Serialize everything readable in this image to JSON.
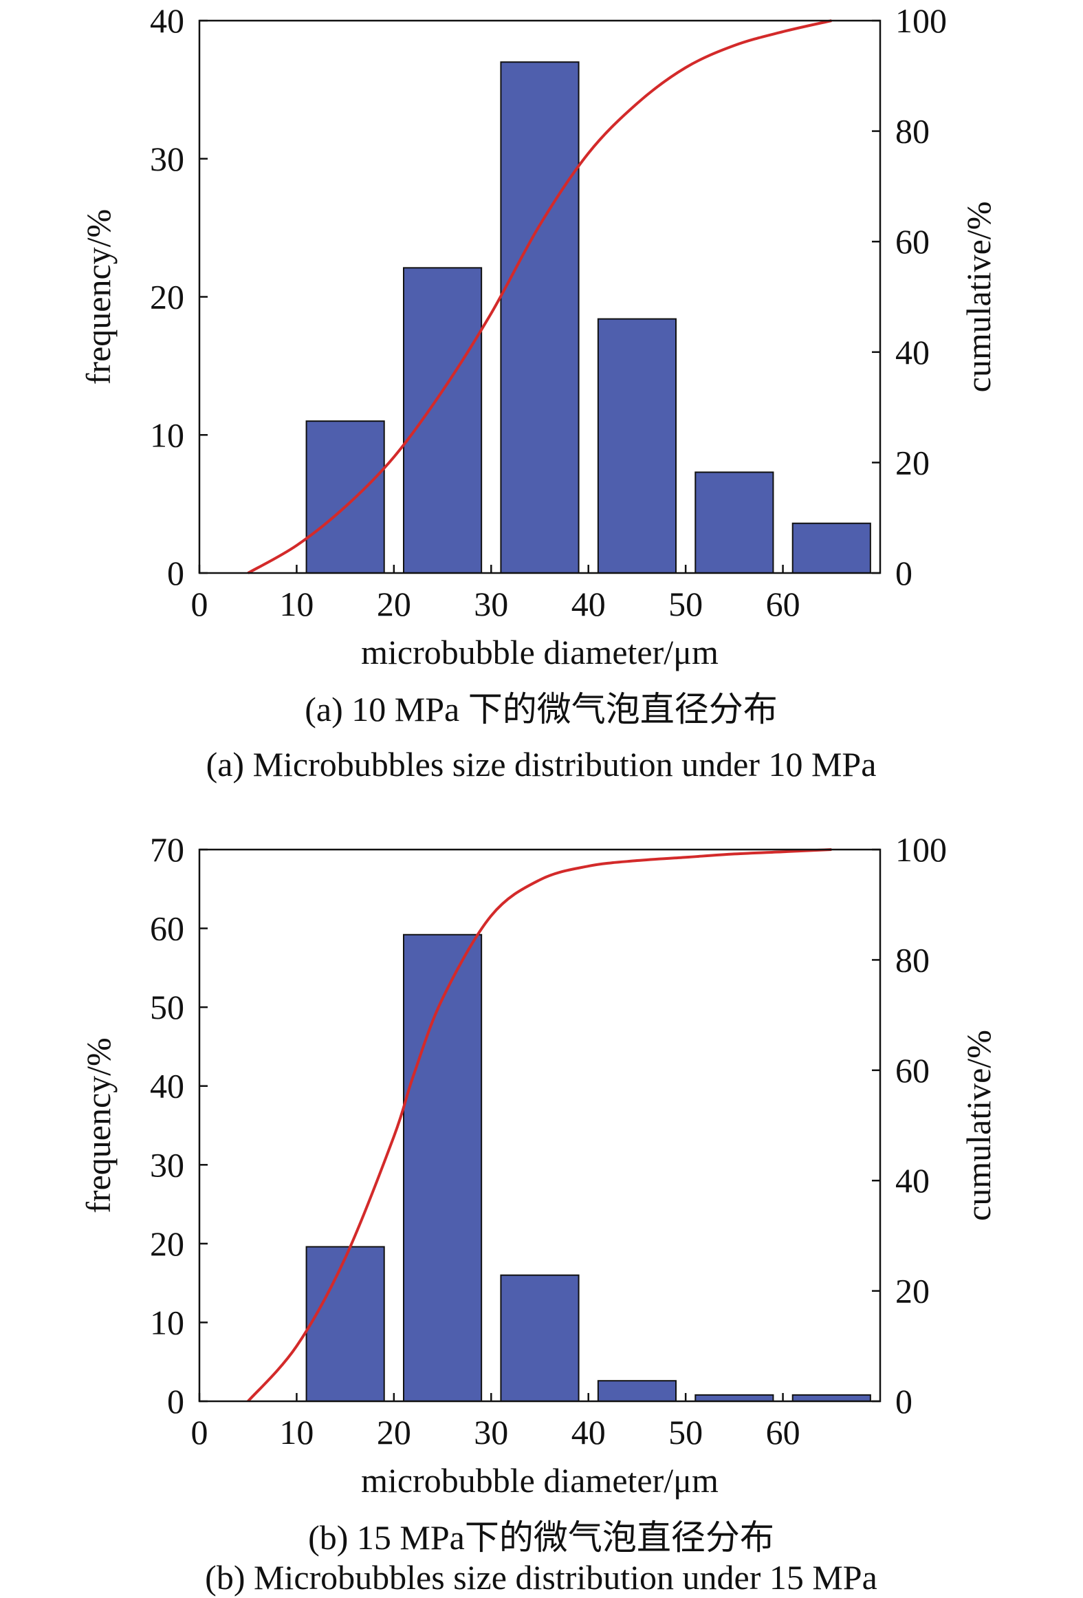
{
  "chart_data": [
    {
      "type": "bar",
      "caption_cn": "(a) 10 MPa 下的微气泡直径分布",
      "caption_en": "(a) Microbubbles size distribution under 10 MPa",
      "xlabel": "microbubble diameter/μm",
      "ylabel": "frequency/%",
      "y2label": "cumulative/%",
      "xlim": [
        0,
        70
      ],
      "ylim": [
        0,
        40
      ],
      "y2lim": [
        0,
        100
      ],
      "x_ticks": [
        0,
        10,
        20,
        30,
        40,
        50,
        60
      ],
      "y_ticks": [
        0,
        10,
        20,
        30,
        40
      ],
      "y2_ticks": [
        0,
        20,
        40,
        60,
        80,
        100
      ],
      "bin_width": 8,
      "bars": [
        {
          "center": 15,
          "value": 11.0
        },
        {
          "center": 25,
          "value": 22.1
        },
        {
          "center": 35,
          "value": 37.0
        },
        {
          "center": 45,
          "value": 18.4
        },
        {
          "center": 55,
          "value": 7.3
        },
        {
          "center": 65,
          "value": 3.6
        }
      ],
      "cumulative": {
        "x": [
          5,
          10,
          15,
          20,
          25,
          30,
          35,
          40,
          45,
          50,
          55,
          60,
          65
        ],
        "y": [
          0,
          5,
          12,
          21,
          33,
          47,
          63,
          76,
          85,
          91.5,
          95.5,
          98,
          100
        ]
      },
      "bar_color": "#4f5fad",
      "line_color": "#d32a2a"
    },
    {
      "type": "bar",
      "caption_cn": "(b) 15 MPa下的微气泡直径分布",
      "caption_en": "(b) Microbubbles size distribution under 15 MPa",
      "xlabel": "microbubble diameter/μm",
      "ylabel": "frequency/%",
      "y2label": "cumulative/%",
      "xlim": [
        0,
        70
      ],
      "ylim": [
        0,
        70
      ],
      "y2lim": [
        0,
        100
      ],
      "x_ticks": [
        0,
        10,
        20,
        30,
        40,
        50,
        60
      ],
      "y_ticks": [
        0,
        10,
        20,
        30,
        40,
        50,
        60,
        70
      ],
      "y2_ticks": [
        0,
        20,
        40,
        60,
        80,
        100
      ],
      "bin_width": 8,
      "bars": [
        {
          "center": 15,
          "value": 19.6
        },
        {
          "center": 25,
          "value": 59.2
        },
        {
          "center": 35,
          "value": 16.0
        },
        {
          "center": 45,
          "value": 2.6
        },
        {
          "center": 55,
          "value": 0.8
        },
        {
          "center": 65,
          "value": 0.8
        }
      ],
      "cumulative": {
        "x": [
          5,
          10,
          15,
          20,
          22,
          25,
          30,
          35,
          40,
          45,
          50,
          55,
          60,
          65
        ],
        "y": [
          0,
          10,
          26,
          48,
          59,
          73,
          88,
          94.5,
          97,
          98,
          98.6,
          99.2,
          99.6,
          100
        ]
      },
      "bar_color": "#4f5fad",
      "line_color": "#d32a2a"
    }
  ]
}
